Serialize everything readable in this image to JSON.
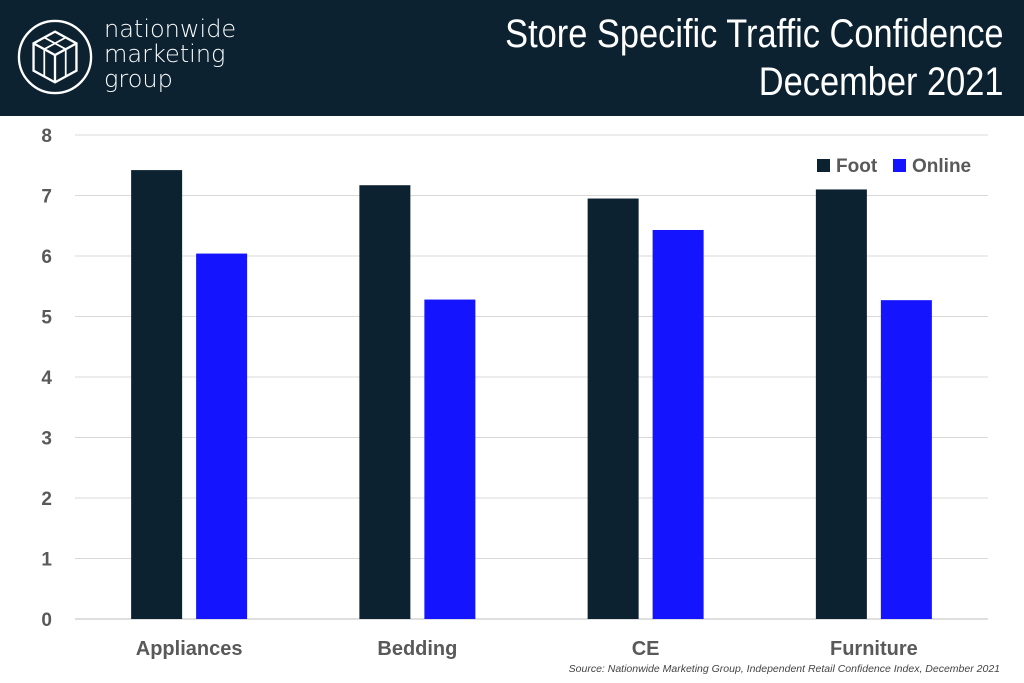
{
  "header": {
    "logo_lines": [
      "nationwide",
      "marketing",
      "group"
    ],
    "title_line1": "Store Specific Traffic Confidence",
    "title_line2": "December 2021"
  },
  "colors": {
    "header_bg": "#0c2230",
    "foot": "#0c2230",
    "online": "#1414ff",
    "grid": "#d9d9d9"
  },
  "chart_data": {
    "type": "bar",
    "categories": [
      "Appliances",
      "Bedding",
      "CE",
      "Furniture"
    ],
    "series": [
      {
        "name": "Foot",
        "values": [
          7.42,
          7.17,
          6.95,
          7.1
        ]
      },
      {
        "name": "Online",
        "values": [
          6.04,
          5.28,
          6.43,
          5.27
        ]
      }
    ],
    "ylim": [
      0,
      8
    ],
    "yticks": [
      "0",
      "1",
      "2",
      "3",
      "4",
      "5",
      "6",
      "7",
      "8"
    ],
    "grid": true,
    "legend_position": "top-right"
  },
  "source": "Source: Nationwide Marketing Group, Independent Retail Confidence Index, December 2021"
}
